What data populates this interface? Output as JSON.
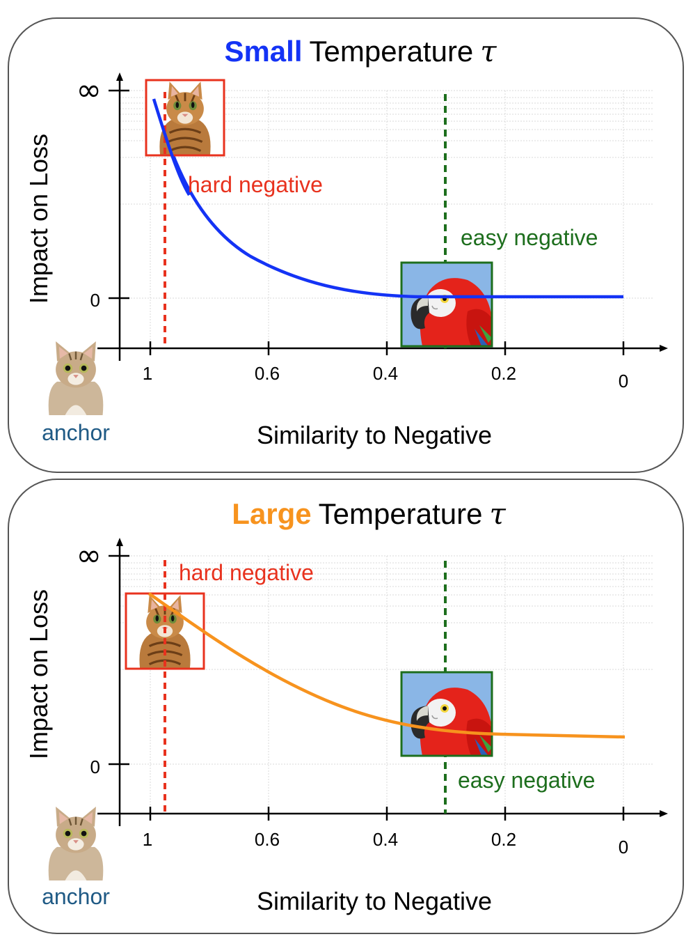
{
  "panels": [
    {
      "title_emphasis": "Small",
      "title_emphasis_color": "#1433f5",
      "title_rest": "Temperature",
      "tau": "τ",
      "curve_color": "#1433f5",
      "y_axis_label": "Impact on Loss",
      "y_ticks": [
        "∞",
        "0"
      ],
      "x_axis_label": "Similarity to Negative",
      "x_ticks": [
        "1",
        "0.6",
        "0.4",
        "0.2",
        "0"
      ],
      "hard_label": "hard negative",
      "easy_label": "easy negative",
      "anchor_label": "anchor"
    },
    {
      "title_emphasis": "Large",
      "title_emphasis_color": "#f7931e",
      "title_rest": "Temperature",
      "tau": "τ",
      "curve_color": "#f7931e",
      "y_axis_label": "Impact on Loss",
      "y_ticks": [
        "∞",
        "0"
      ],
      "x_axis_label": "Similarity to Negative",
      "x_ticks": [
        "1",
        "0.6",
        "0.4",
        "0.2",
        "0"
      ],
      "hard_label": "hard negative",
      "easy_label": "easy negative",
      "anchor_label": "anchor"
    }
  ],
  "colors": {
    "hard": "#e8321e",
    "easy": "#1d6e1d",
    "anchor": "#1f5a85",
    "frame": "#555555"
  }
}
